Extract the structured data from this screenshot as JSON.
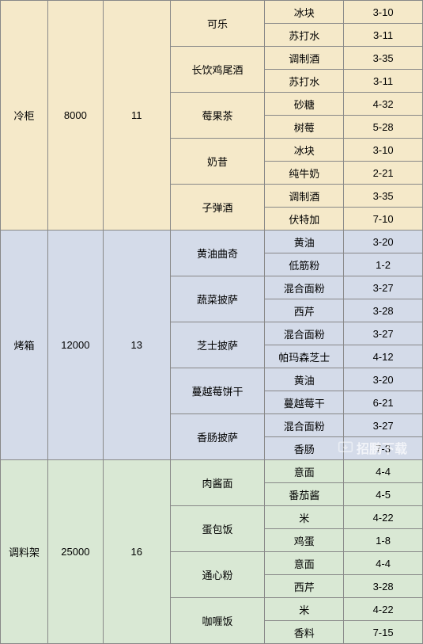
{
  "sections": [
    {
      "bg": "section-orange",
      "name": "冷柜",
      "price": "8000",
      "level": "11",
      "dishes": [
        {
          "dish": "可乐",
          "ingredients": [
            {
              "ing": "冰块",
              "code": "3-10"
            },
            {
              "ing": "苏打水",
              "code": "3-11"
            }
          ]
        },
        {
          "dish": "长饮鸡尾酒",
          "ingredients": [
            {
              "ing": "调制酒",
              "code": "3-35"
            },
            {
              "ing": "苏打水",
              "code": "3-11"
            }
          ]
        },
        {
          "dish": "莓果茶",
          "ingredients": [
            {
              "ing": "砂糖",
              "code": "4-32"
            },
            {
              "ing": "树莓",
              "code": "5-28"
            }
          ]
        },
        {
          "dish": "奶昔",
          "ingredients": [
            {
              "ing": "冰块",
              "code": "3-10"
            },
            {
              "ing": "纯牛奶",
              "code": "2-21"
            }
          ]
        },
        {
          "dish": "子弹酒",
          "ingredients": [
            {
              "ing": "调制酒",
              "code": "3-35"
            },
            {
              "ing": "伏特加",
              "code": "7-10"
            }
          ]
        }
      ]
    },
    {
      "bg": "section-blue",
      "name": "烤箱",
      "price": "12000",
      "level": "13",
      "dishes": [
        {
          "dish": "黄油曲奇",
          "ingredients": [
            {
              "ing": "黄油",
              "code": "3-20"
            },
            {
              "ing": "低筋粉",
              "code": "1-2"
            }
          ]
        },
        {
          "dish": "蔬菜披萨",
          "ingredients": [
            {
              "ing": "混合面粉",
              "code": "3-27"
            },
            {
              "ing": "西芹",
              "code": "3-28"
            }
          ]
        },
        {
          "dish": "芝士披萨",
          "ingredients": [
            {
              "ing": "混合面粉",
              "code": "3-27"
            },
            {
              "ing": "帕玛森芝士",
              "code": "4-12"
            }
          ]
        },
        {
          "dish": "蔓越莓饼干",
          "ingredients": [
            {
              "ing": "黄油",
              "code": "3-20"
            },
            {
              "ing": "蔓越莓干",
              "code": "6-21"
            }
          ]
        },
        {
          "dish": "香肠披萨",
          "ingredients": [
            {
              "ing": "混合面粉",
              "code": "3-27"
            },
            {
              "ing": "香肠",
              "code": "7-3"
            }
          ]
        }
      ]
    },
    {
      "bg": "section-green",
      "name": "调料架",
      "price": "25000",
      "level": "16",
      "dishes": [
        {
          "dish": "肉酱面",
          "ingredients": [
            {
              "ing": "意面",
              "code": "4-4"
            },
            {
              "ing": "番茄酱",
              "code": "4-5"
            }
          ]
        },
        {
          "dish": "蛋包饭",
          "ingredients": [
            {
              "ing": "米",
              "code": "4-22"
            },
            {
              "ing": "鸡蛋",
              "code": "1-8"
            }
          ]
        },
        {
          "dish": "通心粉",
          "ingredients": [
            {
              "ing": "意面",
              "code": "4-4"
            },
            {
              "ing": "西芹",
              "code": "3-28"
            }
          ]
        },
        {
          "dish": "咖喱饭",
          "ingredients": [
            {
              "ing": "米",
              "code": "4-22"
            },
            {
              "ing": "香料",
              "code": "7-15"
            }
          ]
        }
      ]
    }
  ],
  "watermark_text": "招鹏下载"
}
